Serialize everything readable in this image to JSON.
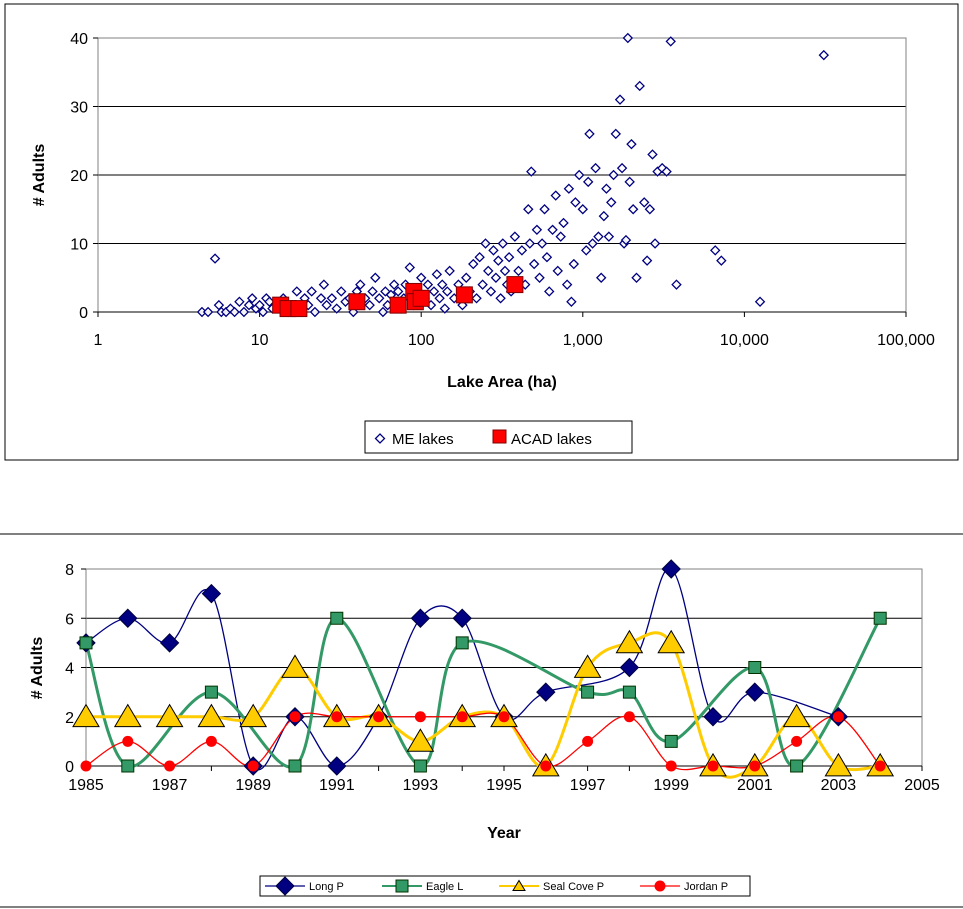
{
  "chart_data": [
    {
      "type": "scatter",
      "title": "",
      "xlabel": "Lake Area (ha)",
      "ylabel": "# Adults",
      "x_scale": "log",
      "xlim": [
        1,
        100000
      ],
      "ylim": [
        0,
        40
      ],
      "x_tick_labels": [
        "1",
        "10",
        "100",
        "1,000",
        "10,000",
        "100,000"
      ],
      "x_tick_values": [
        1,
        10,
        100,
        1000,
        10000,
        100000
      ],
      "y_ticks": [
        0,
        10,
        20,
        30,
        40
      ],
      "grid": "horizontal",
      "legend_position": "bottom",
      "series": [
        {
          "name": "ME lakes",
          "color": "#000080",
          "marker": "open-diamond",
          "points": [
            [
              4.4,
              0
            ],
            [
              4.8,
              0
            ],
            [
              5.3,
              7.8
            ],
            [
              5.6,
              1
            ],
            [
              5.8,
              0
            ],
            [
              6.2,
              0
            ],
            [
              6.6,
              0.5
            ],
            [
              7,
              0
            ],
            [
              7.5,
              1.5
            ],
            [
              8,
              0
            ],
            [
              8.6,
              1
            ],
            [
              9,
              2
            ],
            [
              9.5,
              0.5
            ],
            [
              10,
              1
            ],
            [
              10.5,
              0
            ],
            [
              11,
              2
            ],
            [
              11.5,
              1.5
            ],
            [
              12,
              0.5
            ],
            [
              13,
              1
            ],
            [
              14,
              2
            ],
            [
              15,
              0
            ],
            [
              16,
              1
            ],
            [
              17,
              3
            ],
            [
              18,
              0.5
            ],
            [
              19,
              2
            ],
            [
              20,
              1
            ],
            [
              21,
              3
            ],
            [
              22,
              0
            ],
            [
              24,
              2
            ],
            [
              25,
              4
            ],
            [
              26,
              1
            ],
            [
              28,
              2
            ],
            [
              30,
              0.5
            ],
            [
              32,
              3
            ],
            [
              34,
              1.5
            ],
            [
              36,
              2
            ],
            [
              38,
              0
            ],
            [
              40,
              3
            ],
            [
              42,
              4
            ],
            [
              45,
              2
            ],
            [
              48,
              1
            ],
            [
              50,
              3
            ],
            [
              52,
              5
            ],
            [
              55,
              2
            ],
            [
              58,
              0
            ],
            [
              60,
              3
            ],
            [
              62,
              1
            ],
            [
              65,
              2.5
            ],
            [
              68,
              4
            ],
            [
              70,
              1
            ],
            [
              72,
              3
            ],
            [
              75,
              0.5
            ],
            [
              78,
              2
            ],
            [
              80,
              4
            ],
            [
              85,
              6.5
            ],
            [
              88,
              2
            ],
            [
              90,
              1
            ],
            [
              95,
              3
            ],
            [
              100,
              5
            ],
            [
              105,
              2
            ],
            [
              110,
              4
            ],
            [
              115,
              1
            ],
            [
              120,
              3
            ],
            [
              125,
              5.5
            ],
            [
              130,
              2
            ],
            [
              135,
              4
            ],
            [
              140,
              0.5
            ],
            [
              145,
              3
            ],
            [
              150,
              6
            ],
            [
              160,
              2
            ],
            [
              170,
              4
            ],
            [
              180,
              1
            ],
            [
              190,
              5
            ],
            [
              200,
              3
            ],
            [
              210,
              7
            ],
            [
              220,
              2
            ],
            [
              230,
              8
            ],
            [
              240,
              4
            ],
            [
              250,
              10
            ],
            [
              260,
              6
            ],
            [
              270,
              3
            ],
            [
              280,
              9
            ],
            [
              290,
              5
            ],
            [
              300,
              7.5
            ],
            [
              310,
              2
            ],
            [
              320,
              10
            ],
            [
              330,
              6
            ],
            [
              340,
              4
            ],
            [
              350,
              8
            ],
            [
              360,
              3
            ],
            [
              380,
              11
            ],
            [
              400,
              6
            ],
            [
              420,
              9
            ],
            [
              440,
              4
            ],
            [
              460,
              15
            ],
            [
              470,
              10
            ],
            [
              480,
              20.5
            ],
            [
              500,
              7
            ],
            [
              520,
              12
            ],
            [
              540,
              5
            ],
            [
              560,
              10
            ],
            [
              580,
              15
            ],
            [
              600,
              8
            ],
            [
              620,
              3
            ],
            [
              650,
              12
            ],
            [
              680,
              17
            ],
            [
              700,
              6
            ],
            [
              730,
              11
            ],
            [
              760,
              13
            ],
            [
              800,
              4
            ],
            [
              820,
              18
            ],
            [
              850,
              1.5
            ],
            [
              880,
              7
            ],
            [
              900,
              16
            ],
            [
              950,
              20
            ],
            [
              1000,
              15
            ],
            [
              1050,
              9
            ],
            [
              1080,
              19
            ],
            [
              1100,
              26
            ],
            [
              1150,
              10
            ],
            [
              1200,
              21
            ],
            [
              1250,
              11
            ],
            [
              1300,
              5
            ],
            [
              1350,
              14
            ],
            [
              1400,
              18
            ],
            [
              1450,
              11
            ],
            [
              1500,
              16
            ],
            [
              1550,
              20
            ],
            [
              1600,
              26
            ],
            [
              1700,
              31
            ],
            [
              1750,
              21
            ],
            [
              1800,
              10
            ],
            [
              1850,
              10.5
            ],
            [
              1900,
              40
            ],
            [
              1950,
              19
            ],
            [
              2000,
              24.5
            ],
            [
              2050,
              15
            ],
            [
              2150,
              5
            ],
            [
              2250,
              33
            ],
            [
              2400,
              16
            ],
            [
              2500,
              7.5
            ],
            [
              2600,
              15
            ],
            [
              2700,
              23
            ],
            [
              2800,
              10
            ],
            [
              2900,
              20.5
            ],
            [
              3100,
              21
            ],
            [
              3300,
              20.5
            ],
            [
              3500,
              39.5
            ],
            [
              3800,
              4
            ],
            [
              6600,
              9
            ],
            [
              7200,
              7.5
            ],
            [
              12500,
              1.5
            ],
            [
              31000,
              37.5
            ]
          ]
        },
        {
          "name": "ACAD lakes",
          "color": "#ff0000",
          "marker": "filled-square",
          "points": [
            [
              13.5,
              1
            ],
            [
              15,
              0.5
            ],
            [
              17.5,
              0.5
            ],
            [
              40,
              1.5
            ],
            [
              72,
              1
            ],
            [
              90,
              3
            ],
            [
              92,
              1.5
            ],
            [
              100,
              2
            ],
            [
              185,
              2.5
            ],
            [
              380,
              4
            ]
          ]
        }
      ]
    },
    {
      "type": "line",
      "title": "",
      "xlabel": "Year",
      "ylabel": "# Adults",
      "xlim": [
        1985,
        2005
      ],
      "ylim": [
        0,
        8
      ],
      "x_ticks": [
        1985,
        1987,
        1989,
        1991,
        1993,
        1995,
        1997,
        1999,
        2001,
        2003,
        2005
      ],
      "y_ticks": [
        0,
        2,
        4,
        6,
        8
      ],
      "grid": "horizontal",
      "smoothed": true,
      "legend_position": "bottom",
      "x": [
        1985,
        1986,
        1987,
        1988,
        1989,
        1990,
        1991,
        1992,
        1993,
        1994,
        1995,
        1996,
        1997,
        1998,
        1999,
        2000,
        2001,
        2002,
        2003,
        2004
      ],
      "series": [
        {
          "name": "Long P",
          "color": "#000080",
          "marker": "diamond",
          "values": [
            5,
            6,
            5,
            7,
            0,
            2,
            0,
            2,
            6,
            6,
            2,
            3,
            null,
            4,
            8,
            2,
            3,
            null,
            2,
            null
          ]
        },
        {
          "name": "Eagle L",
          "color": "#339966",
          "marker": "square",
          "values": [
            5,
            0,
            null,
            3,
            null,
            0,
            6,
            null,
            0,
            5,
            null,
            null,
            3,
            3,
            1,
            null,
            4,
            0,
            null,
            6
          ]
        },
        {
          "name": "Seal Cove P",
          "color": "#ffcc00",
          "marker": "triangle",
          "values": [
            2,
            2,
            2,
            2,
            2,
            4,
            2,
            2,
            1,
            2,
            2,
            0,
            4,
            5,
            5,
            0,
            0,
            2,
            0,
            0
          ]
        },
        {
          "name": "Jordan P",
          "color": "#ff0000",
          "marker": "circle",
          "values": [
            0,
            1,
            0,
            1,
            0,
            2,
            2,
            2,
            2,
            2,
            2,
            0,
            1,
            2,
            0,
            0,
            0,
            1,
            2,
            0
          ]
        }
      ]
    }
  ]
}
